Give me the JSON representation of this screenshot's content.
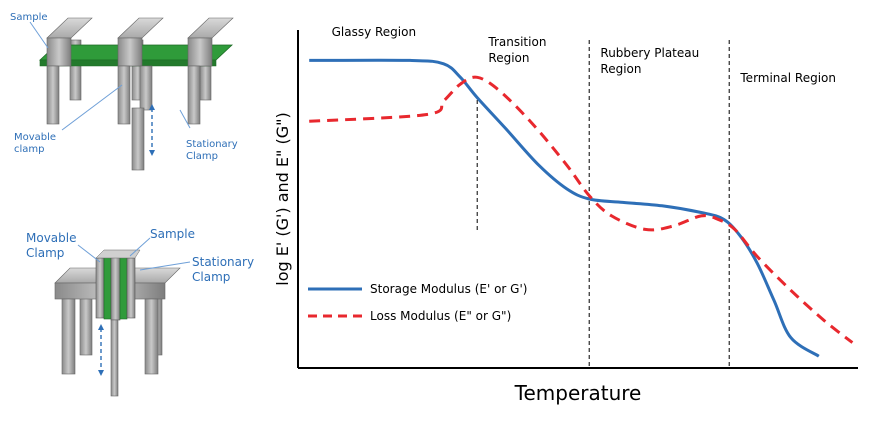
{
  "diagrams": {
    "top": {
      "sample": "Sample",
      "movable": [
        "Movable",
        "clamp"
      ],
      "stationary": [
        "Stationary",
        "Clamp"
      ]
    },
    "bottom": {
      "movable": [
        "Movable",
        "Clamp"
      ],
      "sample": "Sample",
      "stationary": [
        "Stationary",
        "Clamp"
      ]
    }
  },
  "chart_data": {
    "type": "line",
    "xlabel": "Temperature",
    "ylabel": "log E' (G') and E\" (G\")",
    "xlim": [
      0,
      100
    ],
    "ylim": [
      0,
      100
    ],
    "region_boundaries": [
      32,
      52,
      77
    ],
    "regions": [
      {
        "label": [
          "Glassy Region"
        ],
        "x": 6
      },
      {
        "label": [
          "Transition",
          "Region"
        ],
        "x": 34
      },
      {
        "label": [
          "Rubbery Plateau",
          "Region"
        ],
        "x": 54
      },
      {
        "label": [
          "Terminal Region"
        ],
        "x": 79
      }
    ],
    "legend_position": "bottom-left",
    "series": [
      {
        "name": "Storage Modulus (E' or G')",
        "color": "#2e6fb7",
        "style": "solid",
        "points": [
          [
            2,
            91
          ],
          [
            20,
            91
          ],
          [
            26,
            90
          ],
          [
            29,
            86
          ],
          [
            32,
            80
          ],
          [
            37,
            71
          ],
          [
            43,
            60
          ],
          [
            48,
            53
          ],
          [
            52,
            50
          ],
          [
            58,
            49
          ],
          [
            65,
            48
          ],
          [
            72,
            46
          ],
          [
            76,
            44
          ],
          [
            79,
            39
          ],
          [
            82,
            31
          ],
          [
            85,
            20
          ],
          [
            88,
            9
          ],
          [
            93,
            3.5
          ]
        ]
      },
      {
        "name": "Loss Modulus (E\" or G\")",
        "color": "#e8282e",
        "style": "dashed",
        "points": [
          [
            2,
            73
          ],
          [
            23,
            75
          ],
          [
            26,
            79
          ],
          [
            29,
            84
          ],
          [
            32,
            86
          ],
          [
            36,
            82
          ],
          [
            42,
            72
          ],
          [
            48,
            60
          ],
          [
            52,
            51
          ],
          [
            56,
            45
          ],
          [
            62,
            41
          ],
          [
            67,
            42
          ],
          [
            72,
            45
          ],
          [
            75,
            44
          ],
          [
            78,
            41
          ],
          [
            82,
            33
          ],
          [
            88,
            23
          ],
          [
            94,
            14
          ],
          [
            99,
            7.5
          ]
        ]
      }
    ]
  }
}
